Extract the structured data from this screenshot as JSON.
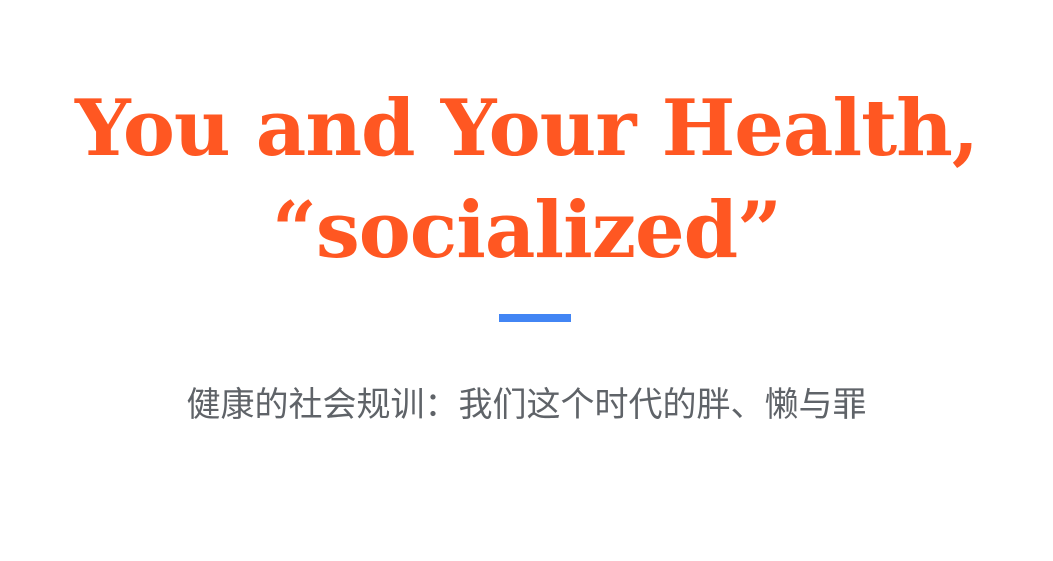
{
  "title": {
    "line1": "You and Your Health,",
    "line2": "“socialized”"
  },
  "subtitle": "健康的社会规训：我们这个时代的胖、懒与罪",
  "colors": {
    "title": "#ff5722",
    "divider": "#4285f4",
    "subtitle": "#5f6368",
    "background": "#ffffff"
  }
}
